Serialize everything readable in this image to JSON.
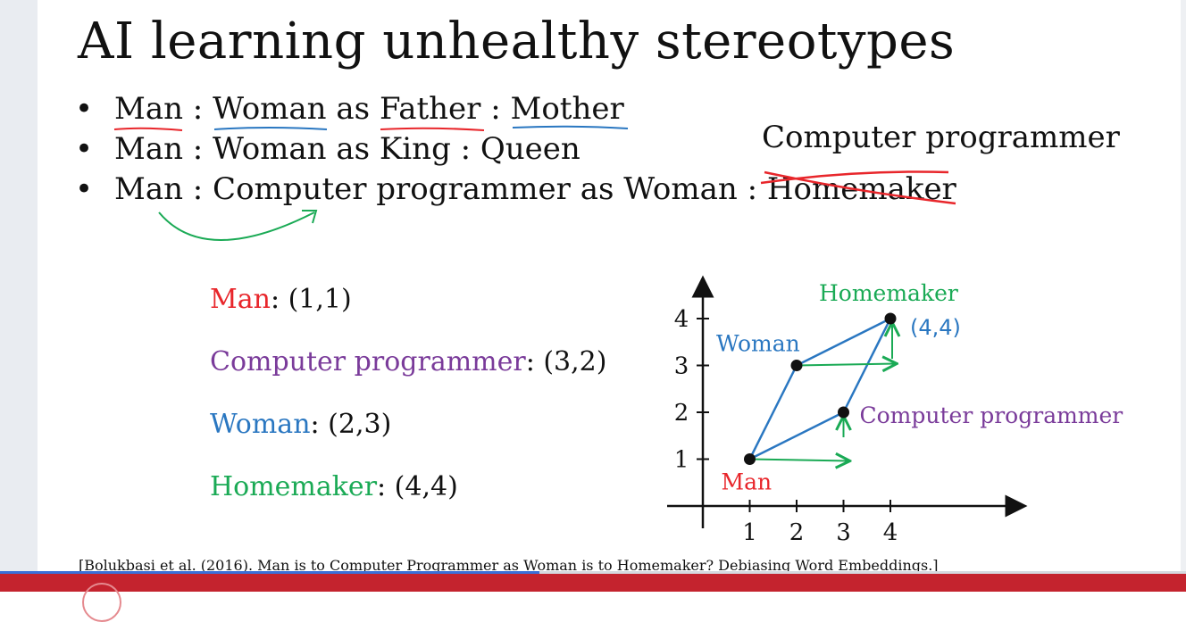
{
  "slide": {
    "title": "AI learning unhealthy stereotypes",
    "bullet_marker": "•",
    "bullets": [
      {
        "parts": [
          "Man",
          " : ",
          "Woman",
          " as ",
          "Father",
          " : ",
          "Mother"
        ]
      },
      {
        "text": "Man : Woman as King : Queen"
      },
      {
        "parts": [
          "Man : Computer programmer as Woman : ",
          "Homemaker"
        ]
      }
    ],
    "correction": "Computer programmer",
    "coordinates": [
      {
        "label": "Man",
        "value": ": (1,1)",
        "color": "#e8262b"
      },
      {
        "label": "Computer programmer",
        "value": ": (3,2)",
        "color": "#7a3b9a"
      },
      {
        "label": "Woman",
        "value": ": (2,3)",
        "color": "#2a77c1"
      },
      {
        "label": "Homemaker",
        "value": ": (4,4)",
        "color": "#1aaa55"
      }
    ],
    "citation": "[Bolukbasi et al. (2016). Man is to Computer Programmer as Woman is to Homemaker? Debiasing Word Embeddings.]"
  },
  "chart_data": {
    "type": "scatter",
    "x_ticks": [
      "1",
      "2",
      "3",
      "4"
    ],
    "y_ticks": [
      "1",
      "2",
      "3",
      "4"
    ],
    "xlim": [
      0,
      4.4
    ],
    "ylim": [
      0,
      4.4
    ],
    "points": [
      {
        "name": "Man",
        "x": 1,
        "y": 1,
        "color": "#e8262b"
      },
      {
        "name": "Woman",
        "x": 2,
        "y": 3,
        "color": "#2a77c1"
      },
      {
        "name": "Computer programmer",
        "x": 3,
        "y": 2,
        "color": "#7a3b9a"
      },
      {
        "name": "Homemaker",
        "x": 4,
        "y": 4,
        "color": "#1aaa55"
      }
    ],
    "annotation": "(4,4)",
    "parallelogram_color": "#2a77c1",
    "arrow_color": "#1aaa55"
  },
  "player": {
    "progress_fraction": 0.455
  },
  "colors": {
    "red": "#e8262b",
    "blue": "#2a77c1",
    "green": "#1aaa55",
    "purple": "#7a3b9a"
  }
}
